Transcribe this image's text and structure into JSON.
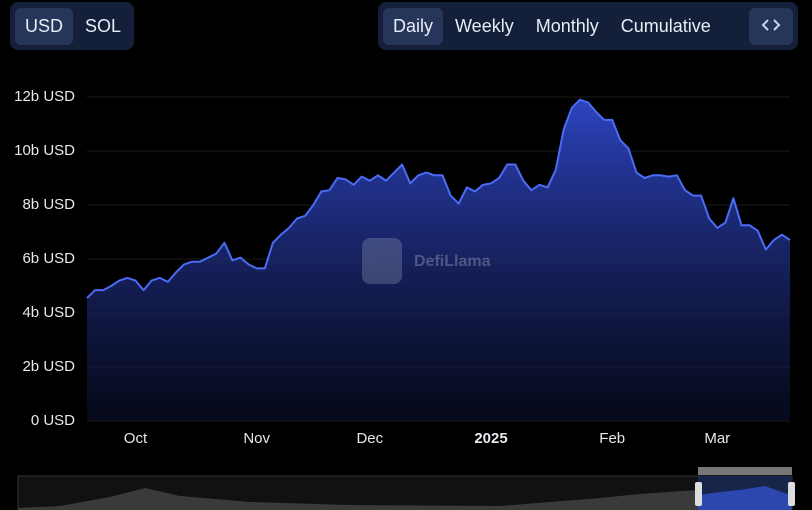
{
  "currency_toggle": [
    "USD",
    "SOL"
  ],
  "period_toggle": [
    "Daily",
    "Weekly",
    "Monthly",
    "Cumulative"
  ],
  "watermark": "DefiLlama",
  "chart_data": {
    "type": "area",
    "color": "#4a6cf7",
    "categories": [
      null,
      null,
      null,
      null,
      null,
      null,
      "Oct",
      null,
      null,
      null,
      null,
      null,
      null,
      null,
      null,
      null,
      null,
      null,
      null,
      null,
      null,
      "Nov",
      null,
      null,
      null,
      null,
      null,
      null,
      null,
      null,
      null,
      null,
      null,
      null,
      null,
      "Dec",
      null,
      null,
      null,
      null,
      null,
      null,
      null,
      null,
      null,
      null,
      null,
      null,
      null,
      null,
      "2025",
      null,
      null,
      null,
      null,
      null,
      null,
      null,
      null,
      null,
      null,
      null,
      null,
      null,
      null,
      "Feb",
      null,
      null,
      null,
      null,
      null,
      null,
      null,
      null,
      null,
      null,
      null,
      null,
      "Mar",
      null,
      null,
      null,
      null,
      null,
      null,
      null,
      null,
      null
    ],
    "values": [
      4.55,
      4.85,
      4.85,
      5.0,
      5.2,
      5.3,
      5.2,
      4.85,
      5.2,
      5.3,
      5.15,
      5.5,
      5.8,
      5.9,
      5.9,
      6.05,
      6.2,
      6.6,
      5.95,
      6.05,
      5.8,
      5.65,
      5.65,
      6.6,
      6.9,
      7.15,
      7.5,
      7.6,
      8.0,
      8.5,
      8.55,
      9.0,
      8.95,
      8.75,
      9.05,
      8.9,
      9.1,
      8.9,
      9.2,
      9.5,
      8.8,
      9.1,
      9.2,
      9.1,
      9.1,
      8.35,
      8.05,
      8.65,
      8.5,
      8.75,
      8.8,
      9.0,
      9.5,
      9.5,
      8.9,
      8.55,
      8.75,
      8.65,
      9.3,
      10.8,
      11.6,
      11.9,
      11.8,
      11.45,
      11.15,
      11.15,
      10.4,
      10.1,
      9.2,
      9.0,
      9.1,
      9.1,
      9.05,
      9.1,
      8.55,
      8.35,
      8.35,
      7.5,
      7.15,
      7.35,
      8.25,
      7.25,
      7.25,
      7.05,
      6.35,
      6.7,
      6.9,
      6.7
    ],
    "ylim": [
      0,
      12
    ],
    "yticks": [
      {
        "value": 0,
        "label": "0 USD"
      },
      {
        "value": 2,
        "label": "2b USD"
      },
      {
        "value": 4,
        "label": "4b USD"
      },
      {
        "value": 6,
        "label": "6b USD"
      },
      {
        "value": 8,
        "label": "8b USD"
      },
      {
        "value": 10,
        "label": "10b USD"
      },
      {
        "value": 12,
        "label": "12b USD"
      }
    ],
    "grid": true
  }
}
